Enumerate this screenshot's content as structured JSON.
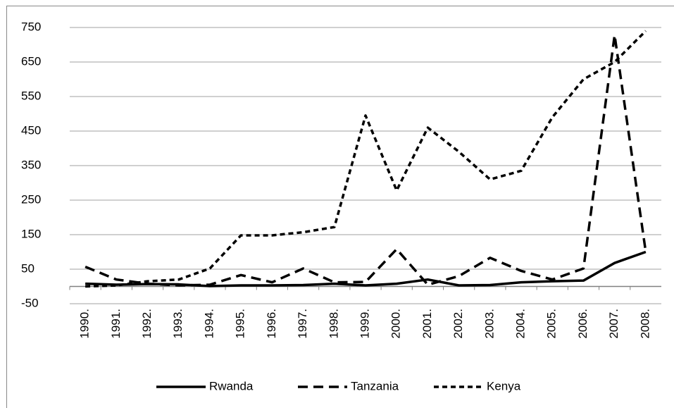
{
  "chart_data": {
    "type": "line",
    "categories": [
      "1990.",
      "1991.",
      "1992.",
      "1993.",
      "1994.",
      "1995.",
      "1996.",
      "1997.",
      "1998.",
      "1999.",
      "2000.",
      "2001.",
      "2002.",
      "2003.",
      "2004.",
      "2005.",
      "2006.",
      "2007.",
      "2008."
    ],
    "series": [
      {
        "name": "Rwanda",
        "color": "#000000",
        "dash": "none",
        "values": [
          8,
          5,
          7,
          6,
          1,
          3,
          3,
          4,
          8,
          3,
          8,
          20,
          3,
          4,
          12,
          15,
          17,
          68,
          100
        ]
      },
      {
        "name": "Tanzania",
        "color": "#000000",
        "dash": "14 8",
        "values": [
          57,
          20,
          8,
          3,
          5,
          33,
          12,
          52,
          12,
          13,
          108,
          5,
          30,
          83,
          45,
          20,
          52,
          728,
          100
        ]
      },
      {
        "name": "Kenya",
        "color": "#000000",
        "dash": "7 5",
        "values": [
          0,
          3,
          15,
          20,
          52,
          148,
          148,
          157,
          172,
          495,
          278,
          460,
          390,
          310,
          335,
          490,
          600,
          650,
          740
        ]
      }
    ],
    "ylim": [
      -50,
      750
    ],
    "yticks": [
      -50,
      50,
      150,
      250,
      350,
      450,
      550,
      650,
      750
    ],
    "grid": true,
    "legend": "bottom"
  }
}
